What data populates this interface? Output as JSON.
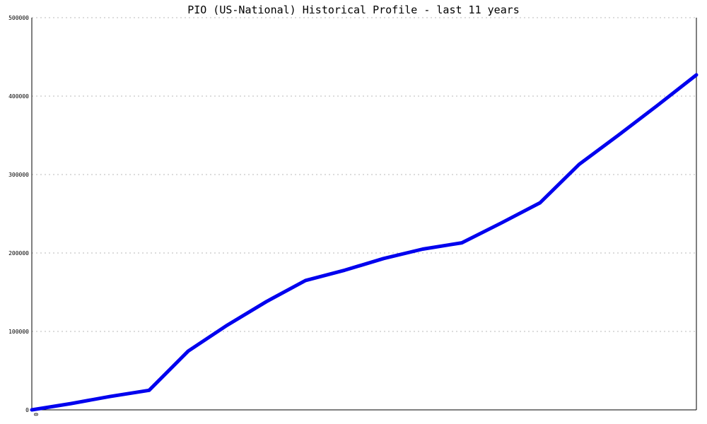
{
  "chart_data": {
    "type": "line",
    "title": "PIO (US-National) Historical Profile - last 11 years",
    "xlabel": "",
    "ylabel": "",
    "ylim": [
      0,
      500000
    ],
    "y_ticks": [
      0,
      100000,
      200000,
      300000,
      400000,
      500000
    ],
    "y_tick_labels": [
      "0",
      "100000",
      "200000",
      "300000",
      "400000",
      "500000"
    ],
    "x_tick_labels": [
      "0"
    ],
    "grid": true,
    "grid_axis": "y",
    "legend": "none",
    "x_points": 23,
    "series": [
      {
        "color": "#0000ee",
        "values": [
          0,
          8000,
          17000,
          25000,
          75000,
          108000,
          138000,
          165000,
          178000,
          193000,
          205000,
          213000,
          238000,
          264000,
          313000,
          350000,
          388000,
          427000
        ]
      }
    ]
  }
}
